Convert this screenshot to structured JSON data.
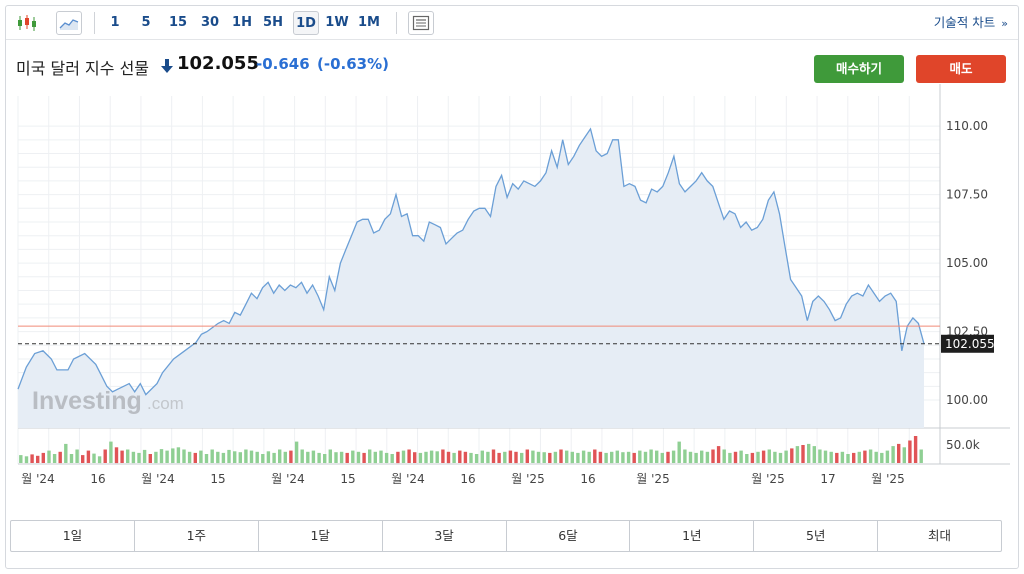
{
  "toolbar": {
    "periods": [
      "1",
      "5",
      "15",
      "30",
      "1H",
      "5H",
      "1D",
      "1W",
      "1M"
    ],
    "active_period": "1D",
    "tech_chart_label": "기술적 차트",
    "tech_chart_chevron": "»"
  },
  "instrument": {
    "name": "미국 달러 지수 선물",
    "price": "102.055",
    "change": "-0.646",
    "change_pct": "(-0.63%)",
    "direction": "down",
    "change_color": "#2a6fd3"
  },
  "actions": {
    "buy_label": "매수하기",
    "sell_label": "매도",
    "buy_color": "#3f9a3a",
    "sell_color": "#e0452a"
  },
  "watermark": {
    "brand": "Investing",
    "suffix": ".com"
  },
  "chart_data": {
    "type": "area",
    "ylim": [
      98.98,
      111.1
    ],
    "y_ticks": [
      "110.00",
      "107.50",
      "105.00",
      "102.50",
      "100.00"
    ],
    "y_tick_values": [
      110.0,
      107.5,
      105.0,
      102.5,
      100.0
    ],
    "current_price_label": "102.055",
    "current_price": 102.055,
    "reference_line_value": 102.7,
    "x_tick_labels": [
      "월 '24",
      "16",
      "월 '24",
      "15",
      "월 '24",
      "15",
      "월 '24",
      "16",
      "월 '25",
      "16",
      "월 '25",
      "월 '25",
      "17",
      "월 '25"
    ],
    "series": [
      {
        "values": [
          100.5,
          101.1,
          101.7,
          101.8,
          101.3,
          101.0,
          101.5,
          101.6,
          101.3,
          100.9,
          100.4,
          100.2,
          100.4,
          100.6,
          100.3,
          100.4,
          101.1,
          101.8,
          102.3,
          102.5,
          102.8,
          102.8,
          103.1,
          103.4,
          103.8,
          104.1,
          104.1,
          103.9,
          103.8,
          104.1,
          103.3,
          104.5,
          105.3,
          105.9,
          106.4,
          106.6,
          106.3,
          106.8,
          107.5,
          106.7,
          106.0,
          105.8,
          106.5,
          106.2,
          105.9,
          106.4,
          106.8,
          106.9,
          107.2,
          107.6,
          108.1,
          107.9,
          108.2,
          108.6,
          108.9,
          109.5,
          109.3,
          109.8,
          109.1,
          109.5,
          108.5,
          108.2,
          107.5,
          107.3,
          107.4,
          108.8,
          107.8,
          107.2,
          107.9,
          108.0,
          106.9,
          106.3,
          106.6,
          106.1,
          106.4,
          107.5,
          104.3,
          103.5,
          102.9,
          103.8,
          103.1,
          103.7,
          104.0,
          104.2,
          104.0,
          103.9,
          102.4,
          102.9,
          102.5,
          102.055
        ],
        "points": [
          [
            0,
            100.4
          ],
          [
            1.5,
            101.2
          ],
          [
            3,
            101.7
          ],
          [
            4.5,
            101.8
          ],
          [
            6,
            101.5
          ],
          [
            7,
            101.1
          ],
          [
            9,
            101.1
          ],
          [
            10,
            101.5
          ],
          [
            12,
            101.7
          ],
          [
            14,
            101.3
          ],
          [
            15,
            100.9
          ],
          [
            16,
            100.5
          ],
          [
            17,
            100.3
          ],
          [
            18,
            100.4
          ],
          [
            20,
            100.6
          ],
          [
            21,
            100.3
          ],
          [
            22,
            100.6
          ],
          [
            23,
            100.2
          ],
          [
            25,
            100.6
          ],
          [
            26,
            101.0
          ],
          [
            28,
            101.5
          ],
          [
            30,
            101.8
          ],
          [
            32,
            102.1
          ],
          [
            33,
            102.4
          ],
          [
            34,
            102.5
          ],
          [
            36,
            102.8
          ],
          [
            37,
            102.9
          ],
          [
            38,
            102.8
          ],
          [
            39,
            103.2
          ],
          [
            40,
            103.1
          ],
          [
            41,
            103.5
          ],
          [
            42,
            103.9
          ],
          [
            43,
            103.7
          ],
          [
            44,
            104.1
          ],
          [
            45,
            104.3
          ],
          [
            46,
            103.9
          ],
          [
            47,
            104.2
          ],
          [
            48,
            104.0
          ],
          [
            49,
            104.2
          ],
          [
            50,
            104.1
          ],
          [
            51,
            104.3
          ],
          [
            52,
            103.9
          ],
          [
            53,
            104.2
          ],
          [
            54,
            103.8
          ],
          [
            55,
            103.3
          ],
          [
            56,
            104.5
          ],
          [
            57,
            104.0
          ],
          [
            58,
            105.0
          ],
          [
            59,
            105.5
          ],
          [
            60,
            106.0
          ],
          [
            61,
            106.5
          ],
          [
            62,
            106.6
          ],
          [
            63,
            106.6
          ],
          [
            64,
            106.1
          ],
          [
            65,
            106.2
          ],
          [
            66,
            106.6
          ],
          [
            67,
            106.8
          ],
          [
            68,
            107.5
          ],
          [
            69,
            106.7
          ],
          [
            70,
            106.8
          ],
          [
            71,
            106.0
          ],
          [
            72,
            106.0
          ],
          [
            73,
            105.8
          ],
          [
            74,
            106.5
          ],
          [
            75,
            106.4
          ],
          [
            76,
            106.3
          ],
          [
            77,
            105.7
          ],
          [
            78,
            105.9
          ],
          [
            79,
            106.1
          ],
          [
            80,
            106.2
          ],
          [
            81,
            106.6
          ],
          [
            82,
            106.9
          ],
          [
            83,
            107.0
          ],
          [
            84,
            107.0
          ],
          [
            85,
            106.7
          ],
          [
            86,
            107.8
          ],
          [
            87,
            108.2
          ],
          [
            88,
            107.4
          ],
          [
            89,
            107.9
          ],
          [
            90,
            107.7
          ],
          [
            91,
            108.0
          ],
          [
            92,
            107.9
          ],
          [
            93,
            107.8
          ],
          [
            94,
            108.0
          ],
          [
            95,
            108.3
          ],
          [
            96,
            109.1
          ],
          [
            97,
            108.5
          ],
          [
            98,
            109.5
          ],
          [
            99,
            108.6
          ],
          [
            100,
            108.9
          ],
          [
            101,
            109.3
          ],
          [
            102,
            109.6
          ],
          [
            103,
            109.9
          ],
          [
            104,
            109.1
          ],
          [
            105,
            108.9
          ],
          [
            106,
            109.0
          ],
          [
            107,
            109.5
          ],
          [
            108,
            109.5
          ],
          [
            109,
            107.8
          ],
          [
            110,
            107.9
          ],
          [
            111,
            107.8
          ],
          [
            112,
            107.3
          ],
          [
            113,
            107.2
          ],
          [
            114,
            107.7
          ],
          [
            115,
            107.6
          ],
          [
            116,
            107.8
          ],
          [
            117,
            108.3
          ],
          [
            118,
            108.9
          ],
          [
            119,
            107.9
          ],
          [
            120,
            107.6
          ],
          [
            121,
            107.8
          ],
          [
            122,
            108.0
          ],
          [
            123,
            108.3
          ],
          [
            124,
            108.0
          ],
          [
            125,
            107.8
          ],
          [
            126,
            107.2
          ],
          [
            127,
            106.6
          ],
          [
            128,
            106.9
          ],
          [
            129,
            106.8
          ],
          [
            130,
            106.3
          ],
          [
            131,
            106.5
          ],
          [
            132,
            106.2
          ],
          [
            133,
            106.3
          ],
          [
            134,
            106.6
          ],
          [
            135,
            107.3
          ],
          [
            136,
            107.6
          ],
          [
            137,
            106.8
          ],
          [
            138,
            105.6
          ],
          [
            139,
            104.4
          ],
          [
            140,
            104.1
          ],
          [
            141,
            103.8
          ],
          [
            142,
            102.9
          ],
          [
            143,
            103.6
          ],
          [
            144,
            103.8
          ],
          [
            145,
            103.6
          ],
          [
            146,
            103.3
          ],
          [
            147,
            102.9
          ],
          [
            148,
            103.0
          ],
          [
            149,
            103.5
          ],
          [
            150,
            103.8
          ],
          [
            151,
            103.9
          ],
          [
            152,
            103.8
          ],
          [
            153,
            104.2
          ],
          [
            154,
            103.9
          ],
          [
            155,
            103.6
          ],
          [
            156,
            103.8
          ],
          [
            157,
            103.9
          ],
          [
            158,
            103.6
          ],
          [
            159,
            101.8
          ],
          [
            160,
            102.7
          ],
          [
            161,
            103.0
          ],
          [
            162,
            102.8
          ],
          [
            163,
            102.055
          ]
        ]
      }
    ],
    "volume": [
      0.35,
      0.3,
      0.38,
      0.32,
      0.45,
      0.55,
      0.4,
      0.5,
      0.85,
      0.4,
      0.6,
      0.35,
      0.55,
      0.42,
      0.3,
      0.6,
      0.95,
      0.7,
      0.55,
      0.6,
      0.5,
      0.45,
      0.58,
      0.4,
      0.5,
      0.62,
      0.55,
      0.65,
      0.7,
      0.6,
      0.5,
      0.45,
      0.55,
      0.4,
      0.6,
      0.5,
      0.45,
      0.58,
      0.52,
      0.48,
      0.6,
      0.55,
      0.5,
      0.4,
      0.52,
      0.45,
      0.6,
      0.5,
      0.55,
      0.95,
      0.6,
      0.5,
      0.55,
      0.45,
      0.4,
      0.6,
      0.48,
      0.5,
      0.45,
      0.55,
      0.5,
      0.45,
      0.6,
      0.5,
      0.55,
      0.45,
      0.4,
      0.5,
      0.55,
      0.6,
      0.48,
      0.45,
      0.5,
      0.55,
      0.52,
      0.6,
      0.5,
      0.45,
      0.55,
      0.5,
      0.45,
      0.4,
      0.55,
      0.5,
      0.6,
      0.45,
      0.5,
      0.55,
      0.5,
      0.45,
      0.6,
      0.55,
      0.5,
      0.48,
      0.45,
      0.5,
      0.6,
      0.55,
      0.5,
      0.45,
      0.55,
      0.5,
      0.6,
      0.5,
      0.45,
      0.5,
      0.55,
      0.48,
      0.5,
      0.45,
      0.55,
      0.5,
      0.6,
      0.55,
      0.45,
      0.5,
      0.55,
      0.95,
      0.6,
      0.5,
      0.45,
      0.55,
      0.5,
      0.6,
      0.75,
      0.6,
      0.45,
      0.5,
      0.55,
      0.4,
      0.45,
      0.5,
      0.55,
      0.6,
      0.5,
      0.45,
      0.55,
      0.65,
      0.75,
      0.8,
      0.85,
      0.75,
      0.6,
      0.55,
      0.5,
      0.45,
      0.5,
      0.4,
      0.45,
      0.5,
      0.55,
      0.6,
      0.5,
      0.45,
      0.55,
      0.75,
      0.85,
      0.7,
      1.0,
      1.2,
      0.6
    ],
    "volume_label": "50.0k",
    "up_color": "#8fcf93",
    "down_color": "#e05456",
    "line_color": "#6b9fd6",
    "fill_color": "#e6edf5",
    "reference_line_color": "#f08a78"
  },
  "ranges": [
    "1일",
    "1주",
    "1달",
    "3달",
    "6달",
    "1년",
    "5년",
    "최대"
  ]
}
